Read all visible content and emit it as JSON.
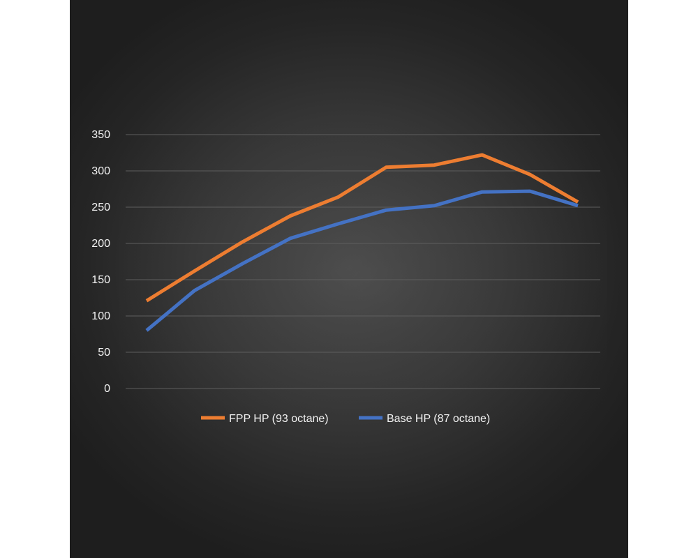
{
  "chart_data": {
    "type": "line",
    "title": "",
    "xlabel": "",
    "ylabel": "",
    "ylim": [
      0,
      350
    ],
    "yticks": [
      0,
      50,
      100,
      150,
      200,
      250,
      300,
      350
    ],
    "x": [
      1,
      2,
      3,
      4,
      5,
      6,
      7,
      8,
      9,
      10
    ],
    "grid": true,
    "legend_position": "bottom",
    "series": [
      {
        "name": "FPP HP (93 octane)",
        "color": "#ed7d31",
        "values": [
          121,
          162,
          202,
          238,
          264,
          305,
          308,
          322,
          295,
          257
        ]
      },
      {
        "name": "Base HP (87 octane)",
        "color": "#4472c4",
        "values": [
          80,
          135,
          172,
          207,
          227,
          246,
          252,
          271,
          272,
          252
        ]
      }
    ]
  }
}
